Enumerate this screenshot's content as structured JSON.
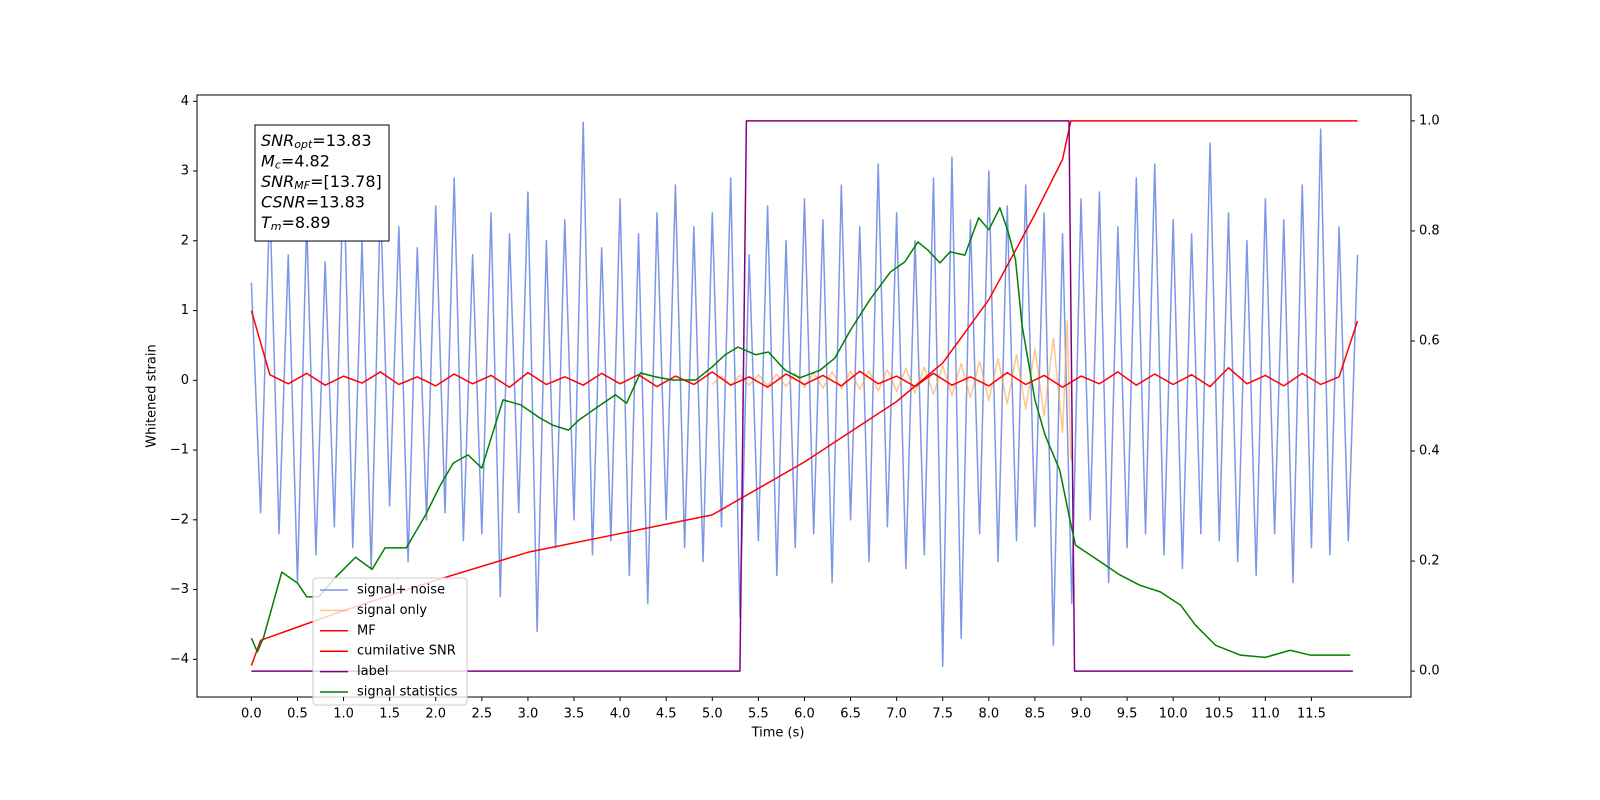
{
  "chart_data": {
    "type": "line",
    "x_label": "Time (s)",
    "y_label": "Whitened strain",
    "xlim": [
      -0.59,
      12.58
    ],
    "ylim": [
      -4.54,
      4.09
    ],
    "y2lim": [
      -0.047,
      1.047
    ],
    "xticks": [
      {
        "value": 0,
        "label": "0.0"
      },
      0.5,
      {
        "value": 1,
        "label": "1.0"
      },
      1.5,
      {
        "value": 2,
        "label": "2.0"
      },
      2.5,
      {
        "value": 3,
        "label": "3.0"
      },
      3.5,
      {
        "value": 4,
        "label": "4.0"
      },
      4.5,
      {
        "value": 5,
        "label": "5.0"
      },
      5.5,
      {
        "value": 6,
        "label": "6.0"
      },
      6.5,
      {
        "value": 7,
        "label": "7.0"
      },
      7.5,
      {
        "value": 8,
        "label": "8.0"
      },
      8.5,
      {
        "value": 9,
        "label": "9.0"
      },
      9.5,
      {
        "value": 10,
        "label": "10.0"
      },
      10.5,
      {
        "value": 11,
        "label": "11.0"
      },
      11.5
    ],
    "yticks": [
      {
        "value": -4,
        "label": "−4"
      },
      {
        "value": -3,
        "label": "−3"
      },
      {
        "value": -2,
        "label": "−2"
      },
      {
        "value": -1,
        "label": "−1"
      },
      0,
      1,
      2,
      3,
      4
    ],
    "y2ticks": [
      {
        "value": 0,
        "label": "0.0"
      },
      0.2,
      0.4,
      0.6,
      0.8,
      {
        "value": 1,
        "label": "1.0"
      }
    ],
    "annotation": [
      {
        "var": "SNR",
        "sub": "opt",
        "text": "=13.83"
      },
      {
        "var": "M",
        "sub": "c",
        "text": "=4.82"
      },
      {
        "var": "SNR",
        "sub": "MF",
        "text": "=[13.78]"
      },
      {
        "var": "CSNR",
        "text": "=13.83"
      },
      {
        "var": "T",
        "sub": "m",
        "text": "=8.89"
      }
    ],
    "series": [
      {
        "name": "signal+ noise",
        "color": "#6f8ce6",
        "opacity": 0.9,
        "x": [
          0,
          0.1,
          0.2,
          0.3,
          0.4,
          0.5,
          0.6,
          0.7,
          0.8,
          0.9,
          1,
          1.1,
          1.2,
          1.3,
          1.4,
          1.5,
          1.6,
          1.7,
          1.8,
          1.9,
          2,
          2.1,
          2.2,
          2.3,
          2.4,
          2.5,
          2.6,
          2.7,
          2.8,
          2.9,
          3,
          3.1,
          3.2,
          3.3,
          3.4,
          3.5,
          3.6,
          3.7,
          3.8,
          3.9,
          4,
          4.1,
          4.2,
          4.3,
          4.4,
          4.5,
          4.6,
          4.7,
          4.8,
          4.9,
          5,
          5.1,
          5.2,
          5.3,
          5.4,
          5.5,
          5.6,
          5.7,
          5.8,
          5.9,
          6,
          6.1,
          6.2,
          6.3,
          6.4,
          6.5,
          6.6,
          6.7,
          6.8,
          6.9,
          7,
          7.1,
          7.2,
          7.3,
          7.4,
          7.5,
          7.6,
          7.7,
          7.8,
          7.9,
          8,
          8.1,
          8.2,
          8.3,
          8.4,
          8.5,
          8.6,
          8.7,
          8.8,
          8.9,
          9,
          9.1,
          9.2,
          9.3,
          9.4,
          9.5,
          9.6,
          9.7,
          9.8,
          9.9,
          10,
          10.1,
          10.2,
          10.3,
          10.4,
          10.5,
          10.6,
          10.7,
          10.8,
          10.9,
          11,
          11.1,
          11.2,
          11.3,
          11.4,
          11.5,
          11.6,
          11.7,
          11.8,
          11.9,
          12
        ],
        "values": [
          1.4,
          -1.9,
          2.6,
          -2.2,
          1.8,
          -2.9,
          2.3,
          -2.5,
          1.7,
          -2.1,
          3.1,
          -2.4,
          2.0,
          -2.7,
          2.6,
          -1.8,
          2.2,
          -2.6,
          1.9,
          -2.0,
          2.5,
          -1.9,
          2.9,
          -2.3,
          1.8,
          -2.2,
          2.4,
          -3.1,
          2.1,
          -1.9,
          2.7,
          -3.6,
          2.0,
          -2.4,
          2.3,
          -2.0,
          3.7,
          -2.5,
          1.9,
          -2.3,
          2.6,
          -2.8,
          2.1,
          -3.2,
          2.4,
          -2.0,
          2.8,
          -2.4,
          2.2,
          -2.6,
          2.4,
          -2.1,
          2.9,
          -3.4,
          1.8,
          -2.3,
          2.5,
          -2.8,
          2.0,
          -2.4,
          2.6,
          -2.2,
          2.3,
          -2.9,
          2.8,
          -2.0,
          2.2,
          -2.6,
          3.1,
          -2.1,
          2.4,
          -2.7,
          2.0,
          -2.5,
          2.9,
          -4.1,
          3.2,
          -3.7,
          2.3,
          -2.2,
          3.0,
          -2.6,
          2.5,
          -2.3,
          2.8,
          -2.1,
          2.4,
          -3.8,
          2.1,
          -3.2,
          2.6,
          -2.0,
          2.7,
          -2.9,
          2.2,
          -2.4,
          2.9,
          -2.2,
          3.1,
          -2.5,
          2.3,
          -2.7,
          2.1,
          -2.2,
          3.4,
          -2.3,
          2.4,
          -2.6,
          2.0,
          -2.8,
          2.6,
          -2.2,
          2.3,
          -2.9,
          2.8,
          -2.4,
          3.6,
          -2.5,
          2.2,
          -2.3,
          1.8
        ]
      },
      {
        "name": "signal only",
        "color": "#ffa040",
        "opacity": 0.6,
        "x": [
          5,
          5.1,
          5.2,
          5.3,
          5.4,
          5.5,
          5.6,
          5.7,
          5.8,
          5.9,
          6,
          6.1,
          6.2,
          6.3,
          6.4,
          6.5,
          6.6,
          6.7,
          6.8,
          6.9,
          7,
          7.1,
          7.2,
          7.3,
          7.4,
          7.5,
          7.6,
          7.7,
          7.8,
          7.9,
          8,
          8.1,
          8.2,
          8.3,
          8.4,
          8.5,
          8.6,
          8.7,
          8.8,
          8.85,
          8.89
        ],
        "values": [
          -0.06,
          0.06,
          -0.07,
          0.07,
          -0.07,
          0.08,
          -0.08,
          0.09,
          -0.09,
          0.1,
          -0.1,
          0.11,
          -0.11,
          0.12,
          -0.12,
          0.13,
          -0.13,
          0.14,
          -0.15,
          0.15,
          -0.16,
          0.17,
          -0.18,
          0.19,
          -0.2,
          0.21,
          -0.22,
          0.24,
          -0.25,
          0.27,
          -0.29,
          0.31,
          -0.34,
          0.37,
          -0.41,
          0.45,
          -0.51,
          0.6,
          -0.75,
          0.85,
          -1.15
        ]
      },
      {
        "name": "MF",
        "color": "#ff0000",
        "opacity": 1,
        "x": [
          0,
          0.2,
          0.4,
          0.6,
          0.8,
          1,
          1.2,
          1.4,
          1.6,
          1.8,
          2,
          2.2,
          2.4,
          2.6,
          2.8,
          3,
          3.2,
          3.4,
          3.6,
          3.8,
          4,
          4.2,
          4.4,
          4.6,
          4.8,
          5,
          5.2,
          5.4,
          5.6,
          5.8,
          6,
          6.2,
          6.4,
          6.6,
          6.8,
          7,
          7.2,
          7.4,
          7.6,
          7.8,
          8,
          8.2,
          8.4,
          8.6,
          8.8,
          9,
          9.2,
          9.4,
          9.6,
          9.8,
          10,
          10.2,
          10.4,
          10.6,
          10.8,
          11,
          11.2,
          11.4,
          11.6,
          11.8,
          12
        ],
        "values": [
          1.0,
          0.08,
          -0.05,
          0.1,
          -0.07,
          0.06,
          -0.04,
          0.12,
          -0.06,
          0.05,
          -0.08,
          0.09,
          -0.05,
          0.07,
          -0.1,
          0.11,
          -0.06,
          0.05,
          -0.07,
          0.1,
          -0.05,
          0.08,
          -0.09,
          0.06,
          -0.06,
          0.12,
          -0.07,
          0.05,
          -0.1,
          0.09,
          -0.06,
          0.07,
          -0.08,
          0.13,
          -0.05,
          0.06,
          -0.09,
          0.1,
          -0.07,
          0.05,
          -0.08,
          0.11,
          -0.06,
          0.07,
          -0.1,
          0.06,
          -0.05,
          0.12,
          -0.07,
          0.09,
          -0.06,
          0.08,
          -0.09,
          0.18,
          -0.05,
          0.07,
          -0.08,
          0.1,
          -0.06,
          0.05,
          0.85
        ]
      },
      {
        "name": "cumilative SNR",
        "color": "#ff0000",
        "opacity": 1,
        "axis": "y2",
        "x": [
          0,
          0.1,
          0.5,
          1,
          2,
          3,
          4,
          5,
          6,
          7,
          7.5,
          8,
          8.5,
          8.8,
          8.89,
          12
        ],
        "values": [
          0.01,
          0.056,
          0.08,
          0.11,
          0.165,
          0.216,
          0.25,
          0.284,
          0.38,
          0.49,
          0.56,
          0.675,
          0.83,
          0.93,
          1.0,
          1.0
        ]
      },
      {
        "name": "label",
        "color": "#800080",
        "opacity": 1,
        "axis": "y2",
        "x": [
          0,
          5.3,
          5.37,
          8.87,
          8.93,
          11.95
        ],
        "values": [
          0,
          0,
          1,
          1,
          0,
          0
        ]
      },
      {
        "name": "signal statistics",
        "color": "#008000",
        "opacity": 1,
        "axis": "y2",
        "x": [
          0,
          0.065,
          0.13,
          0.33,
          0.5,
          0.6,
          0.73,
          0.91,
          1.13,
          1.31,
          1.45,
          1.68,
          1.89,
          2.05,
          2.19,
          2.35,
          2.5,
          2.57,
          2.73,
          2.92,
          3.13,
          3.27,
          3.44,
          3.55,
          3.79,
          3.95,
          4.07,
          4.22,
          4.38,
          4.57,
          4.82,
          5.0,
          5.14,
          5.28,
          5.47,
          5.61,
          5.79,
          5.95,
          6.17,
          6.33,
          6.5,
          6.71,
          6.93,
          7.09,
          7.23,
          7.34,
          7.47,
          7.58,
          7.74,
          7.89,
          8.0,
          8.12,
          8.21,
          8.29,
          8.36,
          8.5,
          8.61,
          8.77,
          8.88,
          8.94,
          9.1,
          9.26,
          9.42,
          9.64,
          9.86,
          10.08,
          10.24,
          10.46,
          10.73,
          11.0,
          11.27,
          11.49,
          11.92
        ],
        "values": [
          0.06,
          0.035,
          0.06,
          0.18,
          0.16,
          0.135,
          0.135,
          0.17,
          0.207,
          0.185,
          0.224,
          0.224,
          0.284,
          0.338,
          0.378,
          0.393,
          0.369,
          0.407,
          0.493,
          0.484,
          0.46,
          0.447,
          0.438,
          0.456,
          0.484,
          0.502,
          0.487,
          0.542,
          0.535,
          0.529,
          0.529,
          0.553,
          0.575,
          0.589,
          0.575,
          0.58,
          0.547,
          0.533,
          0.547,
          0.569,
          0.62,
          0.675,
          0.725,
          0.744,
          0.78,
          0.765,
          0.742,
          0.762,
          0.756,
          0.824,
          0.802,
          0.842,
          0.798,
          0.747,
          0.629,
          0.493,
          0.429,
          0.365,
          0.275,
          0.229,
          0.211,
          0.193,
          0.175,
          0.156,
          0.144,
          0.12,
          0.084,
          0.047,
          0.029,
          0.025,
          0.038,
          0.029,
          0.029
        ]
      }
    ]
  }
}
